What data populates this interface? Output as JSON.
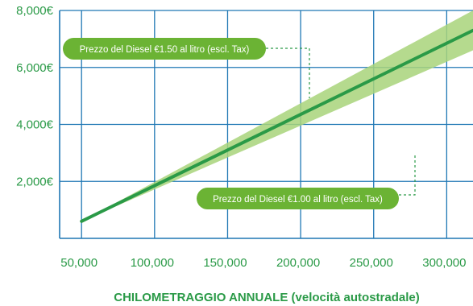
{
  "chart_data": {
    "type": "area",
    "xlabel": "CHILOMETRAGGIO ANNUALE (velocità autostradale)",
    "ylabel": "",
    "xlim": [
      35000,
      318000
    ],
    "ylim": [
      0,
      8000
    ],
    "x_ticks": [
      50000,
      100000,
      150000,
      200000,
      250000,
      300000
    ],
    "x_tick_labels": [
      "50,000",
      "100,000",
      "150,000",
      "200,000",
      "250,000",
      "300,000"
    ],
    "y_ticks": [
      2000,
      4000,
      6000,
      8000
    ],
    "y_tick_labels": [
      "2,000€",
      "4,000€",
      "6,000€",
      "8,000€"
    ],
    "grid": true,
    "series": [
      {
        "name": "",
        "role": "central_line",
        "x": [
          50000,
          318000
        ],
        "values": [
          600,
          7300
        ]
      }
    ],
    "band": {
      "x": [
        50000,
        318000
      ],
      "upper": [
        600,
        8000
      ],
      "lower": [
        600,
        6600
      ]
    },
    "annotations": [
      {
        "text": "Prezzo del Diesel €1.50 al litro (escl. Tax)",
        "points_to": "upper_band"
      },
      {
        "text": "Prezzo del Diesel €1.00 al litro (escl. Tax)",
        "points_to": "lower_band"
      }
    ],
    "colors": {
      "axis": "#1f77b4",
      "grid": "#1f77b4",
      "line": "#2a9a47",
      "band": "#a8d37a",
      "callout": "#6bb334",
      "y_ticks": "#2a9a47",
      "x_ticks": "#2a9a47",
      "xlabel": "#2a9a47"
    }
  }
}
